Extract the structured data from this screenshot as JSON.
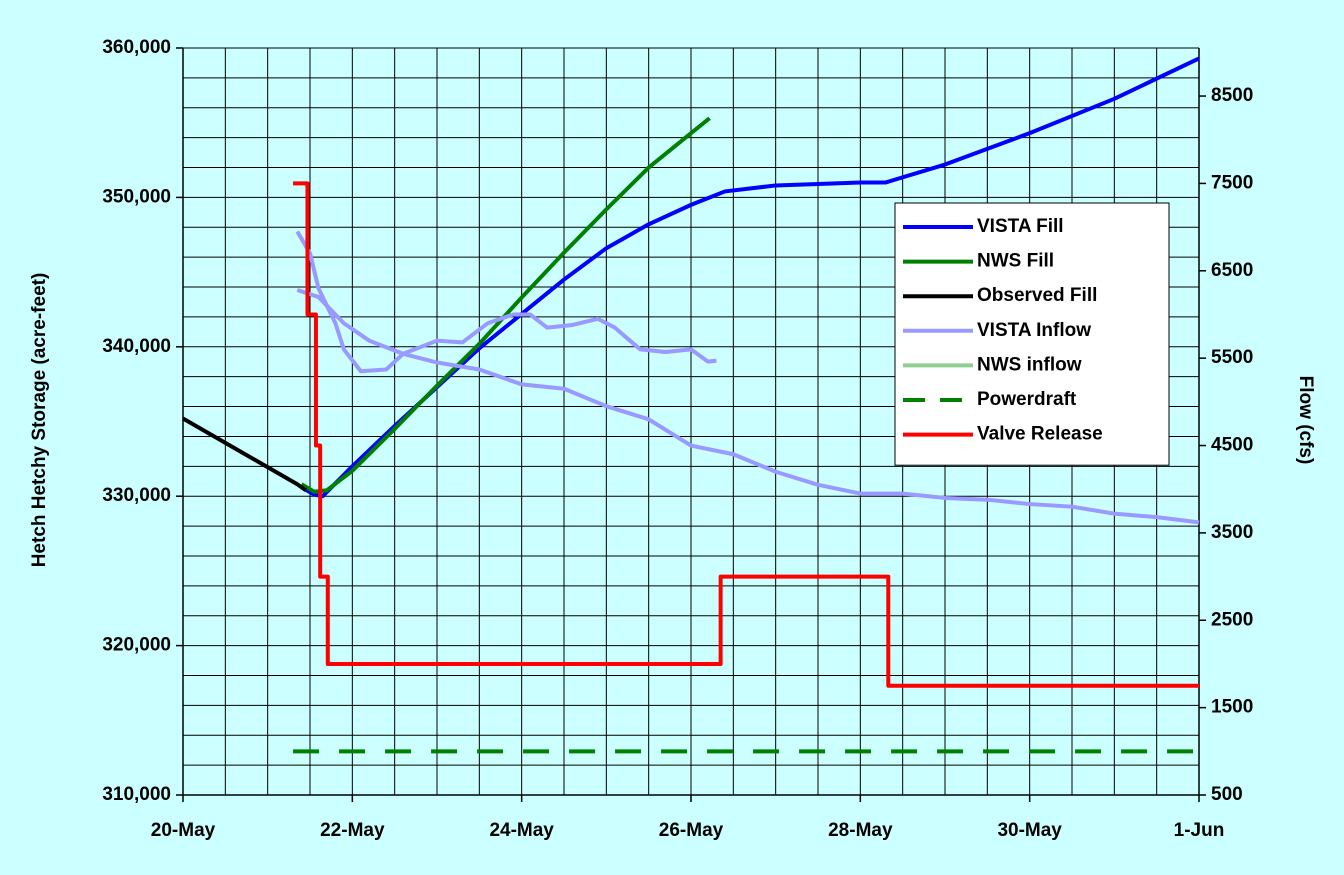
{
  "chart_data": {
    "type": "line",
    "y_label": "Hetch Hetchy Storage (acre-feet)",
    "y2_label": "Flow (cfs)",
    "xlim": [
      0,
      12
    ],
    "xticks": [
      {
        "value": 0,
        "label": "20-May"
      },
      {
        "value": 2,
        "label": "22-May"
      },
      {
        "value": 4,
        "label": "24-May"
      },
      {
        "value": 6,
        "label": "26-May"
      },
      {
        "value": 8,
        "label": "28-May"
      },
      {
        "value": 10,
        "label": "30-May"
      },
      {
        "value": 12,
        "label": "1-Jun"
      }
    ],
    "ylim": [
      310000,
      360000
    ],
    "yticks": [
      {
        "value": 310000,
        "label": "310,000"
      },
      {
        "value": 320000,
        "label": "320,000"
      },
      {
        "value": 330000,
        "label": "330,000"
      },
      {
        "value": 340000,
        "label": "340,000"
      },
      {
        "value": 350000,
        "label": "350,000"
      },
      {
        "value": 360000,
        "label": "360,000"
      }
    ],
    "y2lim": [
      500,
      9050
    ],
    "y2ticks": [
      500,
      1500,
      2500,
      3500,
      4500,
      5500,
      6500,
      7500,
      8500
    ],
    "grid": true,
    "legend": "right",
    "series": [
      {
        "name": "VISTA Fill",
        "color": "#0000ff",
        "x": [
          1.4,
          1.55,
          1.65,
          2,
          2.5,
          3,
          3.5,
          4,
          4.5,
          5,
          5.5,
          6,
          6.4,
          7,
          8,
          8.3,
          9,
          10,
          11,
          12
        ],
        "values": [
          330600,
          330100,
          330000,
          332000,
          334700,
          337300,
          339900,
          342200,
          344500,
          346600,
          348200,
          349500,
          350400,
          350800,
          351000,
          351000,
          352200,
          354300,
          356600,
          359300
        ]
      },
      {
        "name": "NWS Fill",
        "color": "#008000",
        "x": [
          1.4,
          1.55,
          1.7,
          2,
          2.5,
          3,
          3.5,
          4,
          4.5,
          5,
          5.5,
          6,
          6.22
        ],
        "values": [
          330800,
          330300,
          330400,
          331700,
          334500,
          337400,
          340200,
          343300,
          346300,
          349200,
          352000,
          354300,
          355300
        ]
      },
      {
        "name": "Observed Fill",
        "color": "#000000",
        "x": [
          0,
          1.35,
          1.45
        ],
        "values": [
          335200,
          330800,
          330400
        ]
      },
      {
        "name": "VISTA Inflow",
        "color": "#9999ff",
        "axis": "y2",
        "x": [
          1.35,
          1.6,
          1.9,
          2.2,
          2.6,
          3,
          3.5,
          4,
          4.5,
          5,
          5.5,
          6,
          6.5,
          7,
          7.5,
          8,
          8.5,
          9,
          9.5,
          10,
          10.5,
          11,
          11.5,
          12
        ],
        "values": [
          6280,
          6200,
          5900,
          5700,
          5550,
          5450,
          5370,
          5200,
          5150,
          4950,
          4800,
          4500,
          4400,
          4200,
          4050,
          3950,
          3950,
          3900,
          3880,
          3830,
          3800,
          3720,
          3680,
          3620
        ]
      },
      {
        "name": "NWS inflow",
        "color": "#8fcf8f",
        "line_color": "#9999ff",
        "axis": "y2",
        "x": [
          1.35,
          1.5,
          1.6,
          1.8,
          1.9,
          2.1,
          2.4,
          2.6,
          3,
          3.3,
          3.6,
          3.9,
          4.1,
          4.3,
          4.6,
          4.9,
          5.1,
          5.4,
          5.7,
          6,
          6.2,
          6.3
        ],
        "values": [
          6950,
          6700,
          6300,
          5900,
          5600,
          5350,
          5370,
          5550,
          5700,
          5680,
          5900,
          6000,
          6000,
          5850,
          5880,
          5950,
          5850,
          5600,
          5570,
          5600,
          5460,
          5470
        ]
      },
      {
        "name": "Powerdraft",
        "color": "#008000",
        "dashed": true,
        "axis": "y2",
        "x": [
          1.3,
          12
        ],
        "values": [
          1000,
          1000
        ]
      },
      {
        "name": "Valve Release",
        "color": "#ff0000",
        "axis": "y2",
        "x": [
          1.3,
          1.47,
          1.47,
          1.57,
          1.57,
          1.62,
          1.62,
          1.71,
          1.71,
          6.35,
          6.35,
          8.33,
          8.33,
          12
        ],
        "values": [
          7500,
          7500,
          6000,
          6000,
          4500,
          4500,
          3000,
          3000,
          2000,
          2000,
          3000,
          3000,
          1750,
          1750
        ]
      }
    ]
  }
}
